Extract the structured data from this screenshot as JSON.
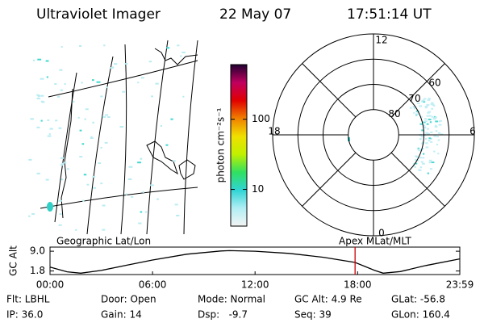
{
  "header": {
    "title": "Ultraviolet Imager",
    "date": "22 May 07",
    "time": "17:51:14 UT"
  },
  "chart_data": [
    {
      "type": "image",
      "label": "Geographic Lat/Lon"
    },
    {
      "type": "colorbar",
      "label": "photon cm⁻²s⁻¹",
      "log_scale": true,
      "ylim": [
        3,
        600
      ],
      "yticks": [
        10,
        100
      ],
      "colors": [
        "#f4f4f4",
        "#b0eef4",
        "#30d4d4",
        "#30e060",
        "#c0f000",
        "#f0e000",
        "#f08000",
        "#e00000",
        "#c00060",
        "#200030"
      ]
    },
    {
      "type": "polar",
      "label": "Apex MLat/MLT",
      "rlim": [
        90,
        50
      ],
      "rticks": [
        80,
        70,
        60
      ],
      "thetalim": [
        0,
        24
      ],
      "thetaticks": [
        0,
        6,
        12,
        18
      ]
    },
    {
      "type": "line",
      "ylabel": "GC Alt",
      "x": [
        0,
        1,
        1.8,
        3,
        4.5,
        6,
        8,
        10,
        10.5,
        12,
        14,
        16,
        17.854,
        19,
        19.5,
        20.5,
        22,
        23.983
      ],
      "values": [
        3.2,
        1.5,
        1.0,
        2.0,
        3.9,
        5.8,
        7.9,
        9.1,
        9.2,
        9.0,
        8.2,
        6.8,
        4.9,
        2.0,
        1.0,
        1.6,
        3.8,
        6.2
      ],
      "color": "#000000",
      "xlim": [
        0,
        23.983
      ],
      "xticks": [
        {
          "value": 0,
          "label": "00:00"
        },
        {
          "value": 6,
          "label": "06:00"
        },
        {
          "value": 12,
          "label": "12:00"
        },
        {
          "value": 18,
          "label": "18:00"
        },
        {
          "value": 23.983,
          "label": "23:59"
        }
      ],
      "ylim": [
        0.5,
        10.5
      ],
      "yticks": [
        {
          "value": 9,
          "label": "9.0"
        },
        1.8
      ],
      "marker_x": 17.854,
      "marker_color": "#cc0000"
    }
  ],
  "footer": {
    "rows": [
      [
        "Flt: LBHL",
        "Door: Open",
        "Mode: Normal",
        "GC Alt: 4.9 Re",
        "GLat: -56.8"
      ],
      [
        "IP: 36.0",
        "Gain: 14",
        "Dsp:   -9.7",
        "Seq: 39",
        "GLon: 160.4"
      ]
    ]
  }
}
